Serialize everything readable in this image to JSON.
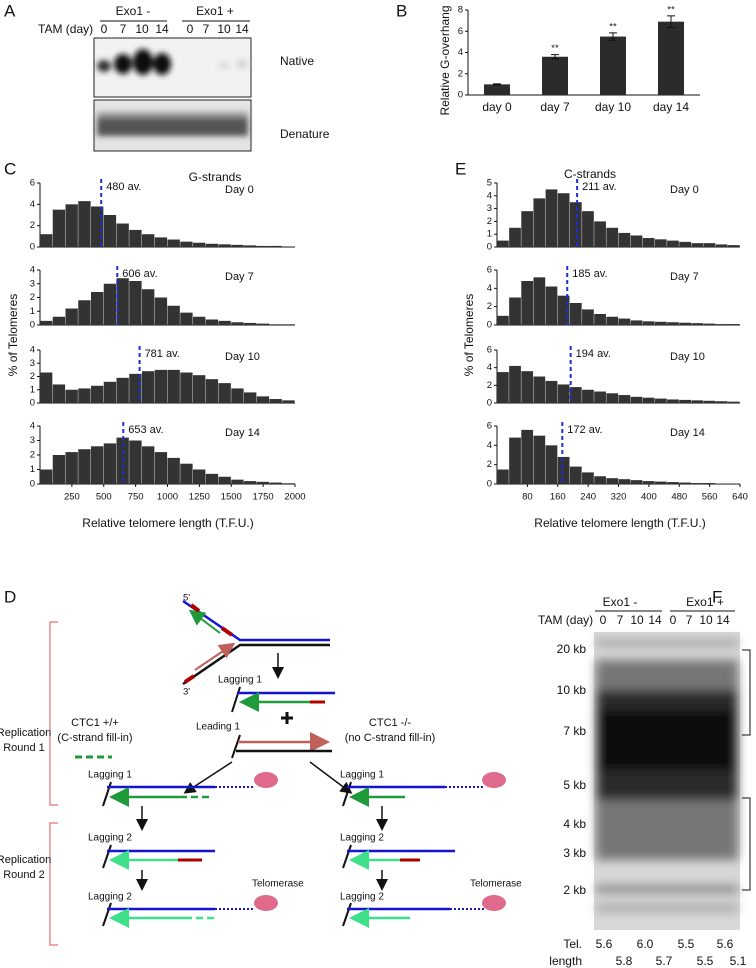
{
  "panel_letters": [
    "A",
    "B",
    "C",
    "D",
    "E",
    "F"
  ],
  "panel_a": {
    "groups": [
      "Exo1 -",
      "Exo1 +"
    ],
    "time_label": "TAM (day)",
    "lanes": [
      "0",
      "7",
      "10",
      "14",
      "0",
      "7",
      "10",
      "14"
    ],
    "blots": [
      "Native",
      "Denature"
    ]
  },
  "panel_c": {
    "heading": "G-strands",
    "ylabel": "% of Telomeres",
    "xlabel": "Relative telomere length (T.F.U.)"
  },
  "panel_e": {
    "heading": "C-strands",
    "ylabel": "% of Telomeres",
    "xlabel": "Relative telomere length (T.F.U.)"
  },
  "diagram": {
    "five_prime": "5'",
    "three_prime": "3'",
    "top_labels": [
      "Lagging 1",
      "Leading 1"
    ],
    "ctc_pos": [
      "CTC1 +/+",
      "(C-strand fill-in)"
    ],
    "ctc_neg": [
      "CTC1 -/-",
      "(no C-strand fill-in)"
    ],
    "round1": [
      "Replication",
      "Round 1"
    ],
    "round2": [
      "Replication",
      "Round 2"
    ],
    "strand_labels": [
      "Lagging 1",
      "Lagging 1",
      "Lagging 2",
      "Lagging 2",
      "Lagging 2",
      "Lagging 2"
    ],
    "telomerase": [
      "Telomerase",
      "Telomerase"
    ]
  },
  "panel_f": {
    "groups": [
      "Exo1 -",
      "Exo1 +"
    ],
    "time_label": "TAM (day)",
    "lanes": [
      "0",
      "7",
      "10",
      "14",
      "0",
      "7",
      "10",
      "14"
    ],
    "markers": [
      "20 kb",
      "10 kb",
      "7 kb",
      "5 kb",
      "4 kb",
      "3 kb",
      "2 kb"
    ],
    "tel_length_label": [
      "Tel.",
      "length"
    ],
    "tel_length_row1": [
      "5.6",
      "6.0",
      "5.5",
      "5.6"
    ],
    "tel_length_row2": [
      "5.8",
      "5.7",
      "5.5",
      "5.1"
    ]
  },
  "chart_data": [
    {
      "type": "bar",
      "ylabel": "Relative G-overhang",
      "categories": [
        "day 0",
        "day 7",
        "day 10",
        "day 14"
      ],
      "values": [
        1.0,
        3.6,
        5.5,
        6.9
      ],
      "errors": [
        0.05,
        0.2,
        0.35,
        0.55
      ],
      "significance": [
        null,
        "**",
        "**",
        "**"
      ],
      "color": "#2b2b2b",
      "ylim": [
        0,
        8
      ],
      "yticks": [
        0,
        2,
        4,
        6,
        8
      ]
    },
    {
      "type": "histogram",
      "title": "Day 0",
      "color": "#333333",
      "mean": 480,
      "mean_label": "480 av.",
      "mean_color": "#1f2fd0",
      "bins": [
        0,
        100,
        200,
        300,
        400,
        500,
        600,
        700,
        800,
        900,
        1000,
        1100,
        1200,
        1300,
        1400,
        1500,
        1600,
        1700,
        1800,
        1900,
        2000
      ],
      "values": [
        1.2,
        3.5,
        4.0,
        4.3,
        3.8,
        3.0,
        2.2,
        1.6,
        1.2,
        0.9,
        0.7,
        0.5,
        0.4,
        0.3,
        0.25,
        0.2,
        0.15,
        0.1,
        0.1,
        0.05
      ],
      "xlim": [
        0,
        2000
      ],
      "ylim": [
        0,
        6
      ],
      "yticks": [
        0,
        2,
        4,
        6
      ]
    },
    {
      "type": "histogram",
      "title": "Day 7",
      "color": "#333333",
      "mean": 606,
      "mean_label": "606 av.",
      "mean_color": "#1f2fd0",
      "bins": [
        0,
        100,
        200,
        300,
        400,
        500,
        600,
        700,
        800,
        900,
        1000,
        1100,
        1200,
        1300,
        1400,
        1500,
        1600,
        1700,
        1800,
        1900,
        2000
      ],
      "values": [
        0.3,
        0.6,
        1.2,
        1.8,
        2.4,
        3.0,
        3.4,
        3.2,
        2.6,
        2.0,
        1.4,
        0.9,
        0.6,
        0.4,
        0.3,
        0.2,
        0.15,
        0.1,
        0.05,
        0.05
      ],
      "xlim": [
        0,
        2000
      ],
      "ylim": [
        0,
        4
      ],
      "yticks": [
        0,
        1,
        2,
        3,
        4
      ]
    },
    {
      "type": "histogram",
      "title": "Day 10",
      "color": "#333333",
      "mean": 781,
      "mean_label": "781 av.",
      "mean_color": "#1f2fd0",
      "bins": [
        0,
        100,
        200,
        300,
        400,
        500,
        600,
        700,
        800,
        900,
        1000,
        1100,
        1200,
        1300,
        1400,
        1500,
        1600,
        1700,
        1800,
        1900,
        2000
      ],
      "values": [
        2.3,
        1.4,
        1.0,
        1.1,
        1.3,
        1.6,
        1.9,
        2.2,
        2.4,
        2.5,
        2.5,
        2.3,
        2.1,
        1.8,
        1.5,
        1.1,
        0.8,
        0.5,
        0.3,
        0.2
      ],
      "xlim": [
        0,
        2000
      ],
      "ylim": [
        0,
        4
      ],
      "yticks": [
        0,
        1,
        2,
        3,
        4
      ]
    },
    {
      "type": "histogram",
      "title": "Day 14",
      "color": "#333333",
      "mean": 653,
      "mean_label": "653 av.",
      "mean_color": "#1f2fd0",
      "bins": [
        0,
        100,
        200,
        300,
        400,
        500,
        600,
        700,
        800,
        900,
        1000,
        1100,
        1200,
        1300,
        1400,
        1500,
        1600,
        1700,
        1800,
        1900,
        2000
      ],
      "values": [
        1.0,
        2.0,
        2.2,
        2.4,
        2.6,
        2.8,
        3.2,
        3.0,
        2.6,
        2.2,
        1.8,
        1.4,
        1.0,
        0.7,
        0.5,
        0.3,
        0.2,
        0.15,
        0.1,
        0.05
      ],
      "xlim": [
        0,
        2000
      ],
      "ylim": [
        0,
        4
      ],
      "yticks": [
        0,
        1,
        2,
        3,
        4
      ],
      "xticks": [
        250,
        500,
        750,
        1000,
        1250,
        1500,
        1750,
        2000
      ]
    },
    {
      "type": "histogram",
      "title": "Day 0",
      "color": "#333333",
      "mean": 211,
      "mean_label": "211 av.",
      "mean_color": "#1f2fd0",
      "bins": [
        0,
        32,
        64,
        96,
        128,
        160,
        192,
        224,
        256,
        288,
        320,
        352,
        384,
        416,
        448,
        480,
        512,
        544,
        576,
        608,
        640
      ],
      "values": [
        0.5,
        1.5,
        2.8,
        3.8,
        4.5,
        4.2,
        3.5,
        2.8,
        2.0,
        1.5,
        1.1,
        0.9,
        0.7,
        0.6,
        0.5,
        0.4,
        0.3,
        0.3,
        0.2,
        0.15
      ],
      "xlim": [
        0,
        640
      ],
      "ylim": [
        0,
        5
      ],
      "yticks": [
        0,
        1,
        2,
        3,
        4,
        5
      ]
    },
    {
      "type": "histogram",
      "title": "Day 7",
      "color": "#333333",
      "mean": 185,
      "mean_label": "185 av.",
      "mean_color": "#1f2fd0",
      "bins": [
        0,
        32,
        64,
        96,
        128,
        160,
        192,
        224,
        256,
        288,
        320,
        352,
        384,
        416,
        448,
        480,
        512,
        544,
        576,
        608,
        640
      ],
      "values": [
        1.0,
        3.0,
        4.8,
        5.2,
        4.2,
        3.2,
        2.4,
        1.7,
        1.2,
        0.9,
        0.7,
        0.5,
        0.4,
        0.35,
        0.3,
        0.25,
        0.2,
        0.15,
        0.1,
        0.1
      ],
      "xlim": [
        0,
        640
      ],
      "ylim": [
        0,
        6
      ],
      "yticks": [
        0,
        2,
        4,
        6
      ]
    },
    {
      "type": "histogram",
      "title": "Day 10",
      "color": "#333333",
      "mean": 194,
      "mean_label": "194 av.",
      "mean_color": "#1f2fd0",
      "bins": [
        0,
        32,
        64,
        96,
        128,
        160,
        192,
        224,
        256,
        288,
        320,
        352,
        384,
        416,
        448,
        480,
        512,
        544,
        576,
        608,
        640
      ],
      "values": [
        3.5,
        4.2,
        3.6,
        3.0,
        2.5,
        2.1,
        1.8,
        1.5,
        1.3,
        1.1,
        0.9,
        0.7,
        0.6,
        0.5,
        0.4,
        0.35,
        0.3,
        0.25,
        0.2,
        0.15
      ],
      "xlim": [
        0,
        640
      ],
      "ylim": [
        0,
        6
      ],
      "yticks": [
        0,
        2,
        4,
        6
      ]
    },
    {
      "type": "histogram",
      "title": "Day 14",
      "color": "#333333",
      "mean": 172,
      "mean_label": "172 av.",
      "mean_color": "#1f2fd0",
      "bins": [
        0,
        32,
        64,
        96,
        128,
        160,
        192,
        224,
        256,
        288,
        320,
        352,
        384,
        416,
        448,
        480,
        512,
        544,
        576,
        608,
        640
      ],
      "values": [
        1.5,
        4.8,
        5.6,
        5.0,
        4.0,
        2.8,
        1.8,
        1.2,
        0.8,
        0.6,
        0.5,
        0.4,
        0.3,
        0.25,
        0.2,
        0.15,
        0.1,
        0.1,
        0.05,
        0.05
      ],
      "xlim": [
        0,
        640
      ],
      "ylim": [
        0,
        6
      ],
      "yticks": [
        0,
        2,
        4,
        6
      ],
      "xticks": [
        80,
        160,
        240,
        320,
        400,
        480,
        560,
        640
      ]
    }
  ]
}
